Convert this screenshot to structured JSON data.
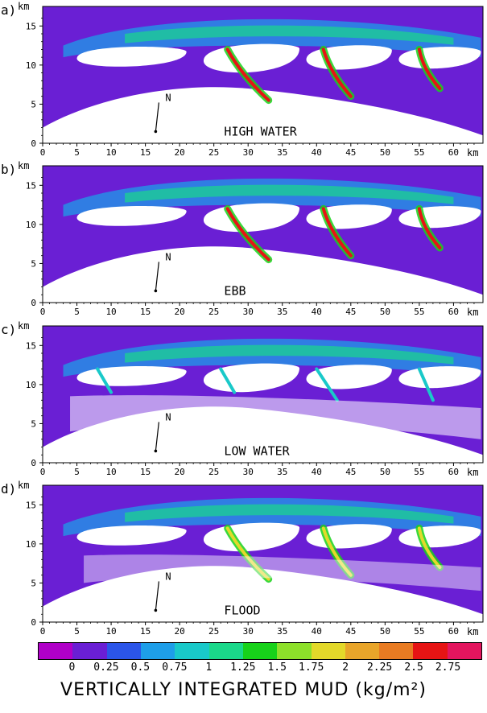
{
  "units": {
    "km": "km"
  },
  "north_label": "N",
  "x_ticks": [
    "0",
    "5",
    "10",
    "15",
    "20",
    "25",
    "30",
    "35",
    "40",
    "45",
    "50",
    "55",
    "60"
  ],
  "y_ticks": [
    "0",
    "5",
    "10",
    "15"
  ],
  "panels": [
    {
      "letter": "a)",
      "label": "HIGH WATER"
    },
    {
      "letter": "b)",
      "label": "EBB"
    },
    {
      "letter": "c)",
      "label": "LOW WATER"
    },
    {
      "letter": "d)",
      "label": "FLOOD"
    }
  ],
  "legend": {
    "title": "VERTICALLY INTEGRATED MUD (kg/m²)",
    "labels": [
      "0",
      "0.25",
      "0.5",
      "0.75",
      "1",
      "1.25",
      "1.5",
      "1.75",
      "2",
      "2.25",
      "2.5",
      "2.75"
    ],
    "colors": [
      "#b000c8",
      "#6a1fd4",
      "#2b55e8",
      "#1e9ee8",
      "#19c9c9",
      "#1ad88a",
      "#17d21a",
      "#8de02a",
      "#e3d92a",
      "#e8a52a",
      "#e87b22",
      "#e61414",
      "#e3155e"
    ]
  },
  "colors": {
    "background": "#6a1fd4",
    "land": "#ffffff"
  }
}
